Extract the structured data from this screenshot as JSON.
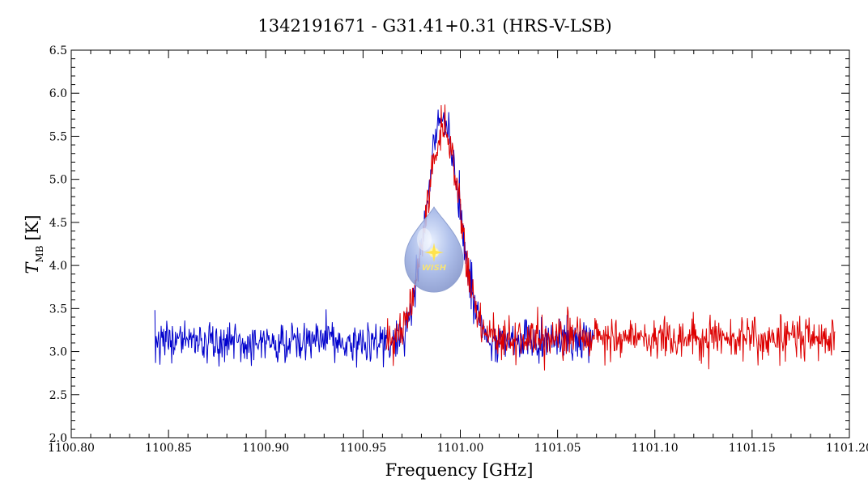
{
  "chart_data": {
    "type": "line",
    "title": "1342191671 - G31.41+0.31 (HRS-V-LSB)",
    "xlabel": "Frequency [GHz]",
    "ylabel_main": "T",
    "ylabel_sub": "MB",
    "ylabel_unit": "[K]",
    "xlim": [
      1100.8,
      1101.2
    ],
    "ylim": [
      2.0,
      6.5
    ],
    "x_ticks": [
      "1100.80",
      "1100.85",
      "1100.90",
      "1100.95",
      "1101.00",
      "1101.05",
      "1101.10",
      "1101.15",
      "1101.20"
    ],
    "y_ticks": [
      "2.0",
      "2.5",
      "3.0",
      "3.5",
      "4.0",
      "4.5",
      "5.0",
      "5.5",
      "6.0",
      "6.5"
    ],
    "series": [
      {
        "color": "#0000cc",
        "x_range": [
          1100.843,
          1101.069
        ],
        "baseline": 3.12,
        "noise": 0.14,
        "line_center": 1100.991,
        "line_peak": 5.7,
        "line_sigma": 0.0085,
        "seed": 7
      },
      {
        "color": "#dd0000",
        "x_range": [
          1100.962,
          1101.193
        ],
        "baseline": 3.15,
        "noise": 0.14,
        "line_center": 1100.991,
        "line_peak": 5.6,
        "line_sigma": 0.0085,
        "seed": 19
      }
    ],
    "grid": false,
    "logo": {
      "text": "WISH"
    }
  }
}
